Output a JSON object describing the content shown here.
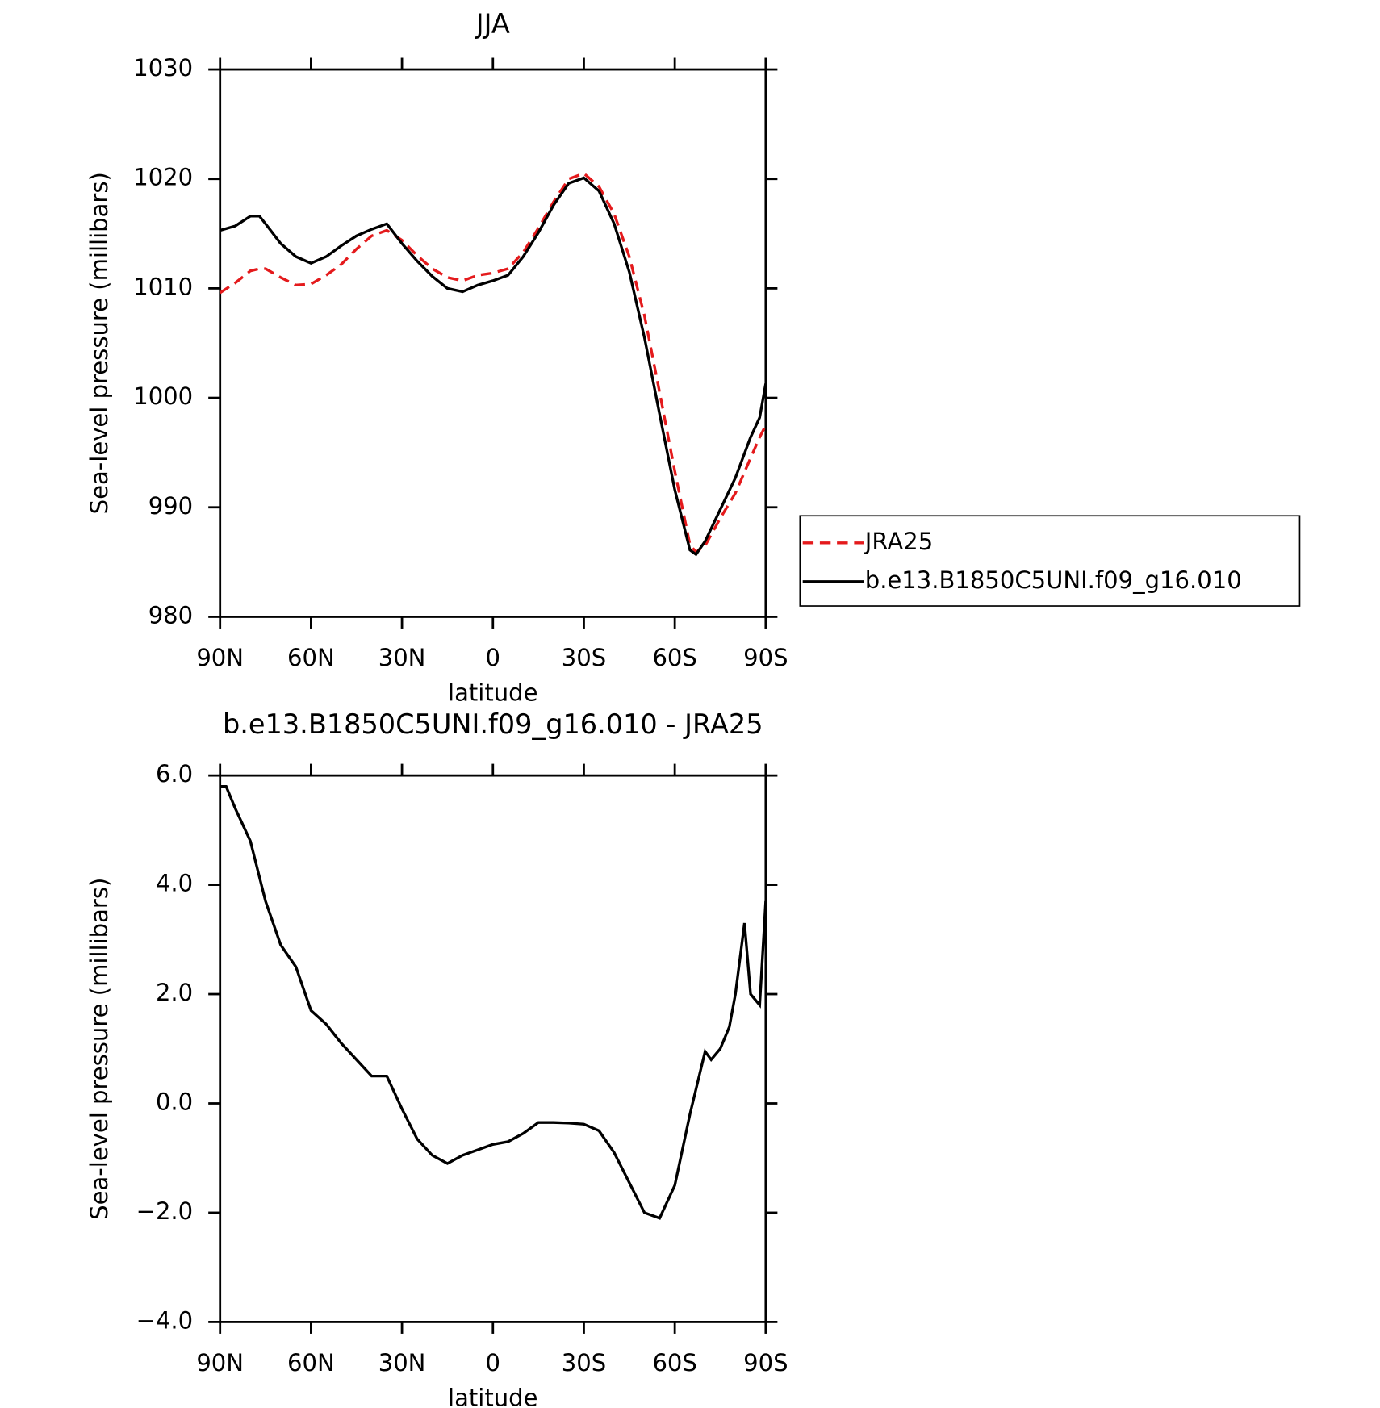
{
  "chart_data": [
    {
      "type": "line",
      "title": "JJA",
      "xlabel": "latitude",
      "ylabel": "Sea-level pressure (millibars)",
      "xlim": [
        90,
        -90
      ],
      "xticks": [
        {
          "value": 90,
          "label": "90N"
        },
        {
          "value": 60,
          "label": "60N"
        },
        {
          "value": 30,
          "label": "30N"
        },
        0,
        {
          "value": -30,
          "label": "30S"
        },
        {
          "value": -60,
          "label": "60S"
        },
        {
          "value": -90,
          "label": "90S"
        }
      ],
      "ylim": [
        980,
        1030
      ],
      "yticks": [
        980,
        990,
        1000,
        1010,
        1020,
        1030
      ],
      "x": [
        90,
        85,
        80,
        77,
        75,
        70,
        65,
        60,
        55,
        50,
        45,
        40,
        35,
        30,
        25,
        20,
        15,
        10,
        5,
        0,
        -5,
        -10,
        -15,
        -20,
        -25,
        -30,
        -35,
        -40,
        -45,
        -50,
        -55,
        -60,
        -65,
        -67,
        -70,
        -75,
        -80,
        -85,
        -88,
        -90
      ],
      "legend": "right",
      "series": [
        {
          "name": "JRA25",
          "color": "#e41a1c",
          "line_style": "dashed",
          "values": [
            1009.6,
            1010.5,
            1011.6,
            1011.8,
            1011.8,
            1011.0,
            1010.3,
            1010.4,
            1011.2,
            1012.2,
            1013.6,
            1014.8,
            1015.3,
            1014.4,
            1013.0,
            1011.8,
            1011.0,
            1010.7,
            1011.2,
            1011.4,
            1011.8,
            1013.3,
            1015.5,
            1017.9,
            1020.0,
            1020.5,
            1019.3,
            1016.8,
            1012.9,
            1007.5,
            1000.5,
            993.3,
            986.6,
            985.9,
            986.5,
            989.0,
            991.3,
            994.5,
            996.4,
            997.5
          ]
        },
        {
          "name": "b.e13.B1850C5UNI.f09_g16.010",
          "color": "#000000",
          "line_style": "solid",
          "values": [
            1015.3,
            1015.7,
            1016.6,
            1016.6,
            1015.9,
            1014.1,
            1012.9,
            1012.3,
            1012.9,
            1013.9,
            1014.8,
            1015.4,
            1015.9,
            1014.1,
            1012.5,
            1011.1,
            1010.0,
            1009.7,
            1010.3,
            1010.7,
            1011.2,
            1012.9,
            1015.1,
            1017.6,
            1019.6,
            1020.1,
            1018.9,
            1015.9,
            1011.5,
            1005.5,
            998.5,
            991.6,
            986.1,
            985.7,
            986.9,
            989.8,
            992.7,
            996.4,
            998.2,
            1001.3
          ]
        }
      ]
    },
    {
      "type": "line",
      "title": "b.e13.B1850C5UNI.f09_g16.010 - JRA25",
      "xlabel": "latitude",
      "ylabel": "Sea-level pressure (millibars)",
      "xlim": [
        90,
        -90
      ],
      "xticks": [
        {
          "value": 90,
          "label": "90N"
        },
        {
          "value": 60,
          "label": "60N"
        },
        {
          "value": 30,
          "label": "30N"
        },
        0,
        {
          "value": -30,
          "label": "30S"
        },
        {
          "value": -60,
          "label": "60S"
        },
        {
          "value": -90,
          "label": "90S"
        }
      ],
      "ylim": [
        -4,
        6
      ],
      "yticks": [
        {
          "value": -4,
          "label": "−4.0"
        },
        {
          "value": -2,
          "label": "−2.0"
        },
        {
          "value": 0,
          "label": "0.0"
        },
        {
          "value": 2,
          "label": "2.0"
        },
        {
          "value": 4,
          "label": "4.0"
        },
        {
          "value": 6,
          "label": "6.0"
        }
      ],
      "x": [
        90,
        88,
        85,
        80,
        75,
        70,
        65,
        60,
        55,
        50,
        45,
        40,
        35,
        30,
        25,
        20,
        15,
        10,
        5,
        0,
        -5,
        -10,
        -15,
        -20,
        -25,
        -30,
        -35,
        -40,
        -45,
        -50,
        -55,
        -60,
        -65,
        -70,
        -72,
        -75,
        -78,
        -80,
        -83,
        -85,
        -88,
        -90
      ],
      "series": [
        {
          "color": "#000000",
          "line_style": "solid",
          "values": [
            5.8,
            5.8,
            5.4,
            4.8,
            3.7,
            2.9,
            2.5,
            1.7,
            1.45,
            1.1,
            0.8,
            0.5,
            0.5,
            -0.1,
            -0.65,
            -0.95,
            -1.1,
            -0.95,
            -0.85,
            -0.75,
            -0.7,
            -0.55,
            -0.35,
            -0.35,
            -0.36,
            -0.38,
            -0.5,
            -0.9,
            -1.45,
            -2.0,
            -2.1,
            -1.5,
            -0.2,
            0.95,
            0.8,
            1.0,
            1.4,
            2.0,
            3.3,
            2.0,
            1.8,
            3.7
          ]
        }
      ]
    }
  ]
}
